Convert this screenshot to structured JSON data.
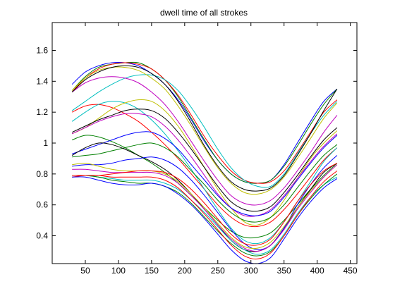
{
  "figure": {
    "background": "#ffffff",
    "axes_color": "#000000"
  },
  "chart_data": {
    "type": "line",
    "title": "dwell time of all strokes",
    "xlabel": "",
    "ylabel": "",
    "xlim": [
      0,
      460
    ],
    "ylim": [
      0.22,
      1.78
    ],
    "xticks": [
      50,
      100,
      150,
      200,
      250,
      300,
      350,
      400,
      450
    ],
    "xtick_labels": [
      "50",
      "100",
      "150",
      "200",
      "250",
      "300",
      "350",
      "400",
      "450"
    ],
    "yticks": [
      0.4,
      0.6,
      0.8,
      1.0,
      1.2,
      1.4,
      1.6
    ],
    "ytick_labels": [
      "0.4",
      "0.6",
      "0.8",
      "1",
      "1.2",
      "1.4",
      "1.6"
    ],
    "grid": false,
    "legend": "none",
    "x": [
      30,
      50,
      70,
      90,
      110,
      130,
      150,
      170,
      190,
      210,
      230,
      250,
      270,
      290,
      310,
      330,
      350,
      370,
      390,
      410,
      430
    ],
    "series": [
      {
        "color": "#0000ff",
        "values": [
          1.38,
          1.46,
          1.5,
          1.52,
          1.52,
          1.5,
          1.45,
          1.38,
          1.28,
          1.15,
          1.01,
          0.89,
          0.8,
          0.75,
          0.74,
          0.76,
          0.86,
          1.0,
          1.14,
          1.27,
          1.35
        ]
      },
      {
        "color": "#008000",
        "values": [
          1.34,
          1.43,
          1.49,
          1.51,
          1.52,
          1.52,
          1.48,
          1.41,
          1.3,
          1.16,
          1.02,
          0.89,
          0.8,
          0.75,
          0.74,
          0.76,
          0.85,
          0.98,
          1.12,
          1.25,
          1.35
        ]
      },
      {
        "color": "#ff0000",
        "values": [
          1.33,
          1.42,
          1.48,
          1.51,
          1.52,
          1.51,
          1.48,
          1.41,
          1.31,
          1.18,
          1.04,
          0.92,
          0.82,
          0.76,
          0.74,
          0.75,
          0.82,
          0.94,
          1.07,
          1.2,
          1.28
        ]
      },
      {
        "color": "#00bfbf",
        "values": [
          1.21,
          1.27,
          1.33,
          1.38,
          1.42,
          1.44,
          1.44,
          1.41,
          1.34,
          1.23,
          1.1,
          0.96,
          0.84,
          0.76,
          0.72,
          0.72,
          0.8,
          0.93,
          1.06,
          1.18,
          1.27
        ]
      },
      {
        "color": "#bf00bf",
        "values": [
          1.33,
          1.39,
          1.42,
          1.43,
          1.42,
          1.39,
          1.33,
          1.25,
          1.14,
          1.01,
          0.88,
          0.76,
          0.66,
          0.61,
          0.6,
          0.63,
          0.71,
          0.82,
          0.94,
          1.07,
          1.18
        ]
      },
      {
        "color": "#bfbf00",
        "values": [
          1.34,
          1.42,
          1.47,
          1.49,
          1.49,
          1.47,
          1.42,
          1.35,
          1.24,
          1.11,
          0.97,
          0.84,
          0.74,
          0.68,
          0.67,
          0.7,
          0.78,
          0.9,
          1.03,
          1.16,
          1.26
        ]
      },
      {
        "color": "#000000",
        "values": [
          1.33,
          1.41,
          1.46,
          1.49,
          1.5,
          1.49,
          1.45,
          1.38,
          1.27,
          1.13,
          0.98,
          0.85,
          0.75,
          0.7,
          0.69,
          0.71,
          0.79,
          0.92,
          1.06,
          1.21,
          1.35
        ]
      },
      {
        "color": "#ff0000",
        "values": [
          1.2,
          1.24,
          1.25,
          1.23,
          1.19,
          1.14,
          1.07,
          0.99,
          0.9,
          0.8,
          0.7,
          0.6,
          0.52,
          0.47,
          0.46,
          0.49,
          0.57,
          0.67,
          0.78,
          0.89,
          0.97
        ]
      },
      {
        "color": "#00bfbf",
        "values": [
          1.14,
          1.2,
          1.25,
          1.27,
          1.26,
          1.22,
          1.15,
          1.06,
          0.95,
          0.83,
          0.7,
          0.57,
          0.45,
          0.37,
          0.35,
          0.39,
          0.49,
          0.62,
          0.75,
          0.88,
          0.97
        ]
      },
      {
        "color": "#bfbf00",
        "values": [
          1.06,
          1.1,
          1.16,
          1.22,
          1.26,
          1.28,
          1.27,
          1.21,
          1.11,
          0.98,
          0.84,
          0.7,
          0.58,
          0.49,
          0.47,
          0.52,
          0.63,
          0.77,
          0.9,
          1.0,
          1.08
        ]
      },
      {
        "color": "#bf00bf",
        "values": [
          1.06,
          1.1,
          1.14,
          1.17,
          1.19,
          1.19,
          1.17,
          1.11,
          1.02,
          0.91,
          0.79,
          0.67,
          0.58,
          0.53,
          0.53,
          0.57,
          0.66,
          0.77,
          0.88,
          0.98,
          1.06
        ]
      },
      {
        "color": "#000000",
        "values": [
          1.07,
          1.11,
          1.15,
          1.18,
          1.21,
          1.22,
          1.21,
          1.16,
          1.07,
          0.96,
          0.84,
          0.72,
          0.62,
          0.57,
          0.56,
          0.59,
          0.68,
          0.79,
          0.91,
          1.02,
          1.1
        ]
      },
      {
        "color": "#008000",
        "values": [
          1.02,
          1.05,
          1.04,
          1.01,
          0.97,
          0.92,
          0.87,
          0.81,
          0.74,
          0.66,
          0.58,
          0.5,
          0.43,
          0.39,
          0.39,
          0.42,
          0.5,
          0.6,
          0.7,
          0.79,
          0.87
        ]
      },
      {
        "color": "#0000ff",
        "values": [
          0.93,
          0.96,
          0.99,
          1.02,
          1.05,
          1.07,
          1.07,
          1.03,
          0.96,
          0.86,
          0.76,
          0.66,
          0.58,
          0.54,
          0.53,
          0.56,
          0.65,
          0.76,
          0.87,
          0.97,
          1.05
        ]
      },
      {
        "color": "#008000",
        "values": [
          0.91,
          0.92,
          0.93,
          0.95,
          0.97,
          0.99,
          1.0,
          0.97,
          0.91,
          0.82,
          0.73,
          0.63,
          0.55,
          0.5,
          0.49,
          0.52,
          0.6,
          0.71,
          0.82,
          0.92,
          0.99
        ]
      },
      {
        "color": "#000000",
        "values": [
          0.92,
          0.97,
          1.0,
          0.99,
          0.96,
          0.92,
          0.88,
          0.83,
          0.76,
          0.67,
          0.57,
          0.47,
          0.37,
          0.31,
          0.3,
          0.34,
          0.45,
          0.58,
          0.7,
          0.81,
          0.87
        ]
      },
      {
        "color": "#0000ff",
        "values": [
          0.85,
          0.86,
          0.86,
          0.87,
          0.89,
          0.9,
          0.91,
          0.89,
          0.84,
          0.76,
          0.66,
          0.55,
          0.44,
          0.35,
          0.31,
          0.34,
          0.45,
          0.6,
          0.73,
          0.84,
          0.92
        ]
      },
      {
        "color": "#bfbf00",
        "values": [
          0.86,
          0.87,
          0.85,
          0.83,
          0.82,
          0.82,
          0.82,
          0.8,
          0.75,
          0.67,
          0.58,
          0.48,
          0.39,
          0.33,
          0.32,
          0.36,
          0.46,
          0.58,
          0.69,
          0.78,
          0.86
        ]
      },
      {
        "color": "#bf00bf",
        "values": [
          0.83,
          0.83,
          0.82,
          0.81,
          0.81,
          0.81,
          0.81,
          0.79,
          0.74,
          0.66,
          0.57,
          0.47,
          0.38,
          0.32,
          0.3,
          0.34,
          0.44,
          0.57,
          0.68,
          0.78,
          0.86
        ]
      },
      {
        "color": "#ff0000",
        "values": [
          0.78,
          0.79,
          0.79,
          0.8,
          0.81,
          0.82,
          0.82,
          0.81,
          0.77,
          0.7,
          0.61,
          0.51,
          0.41,
          0.35,
          0.34,
          0.38,
          0.49,
          0.62,
          0.73,
          0.82,
          0.87
        ]
      },
      {
        "color": "#00bfbf",
        "values": [
          0.79,
          0.79,
          0.78,
          0.77,
          0.76,
          0.76,
          0.76,
          0.74,
          0.7,
          0.63,
          0.55,
          0.46,
          0.37,
          0.31,
          0.28,
          0.31,
          0.41,
          0.54,
          0.65,
          0.73,
          0.78
        ]
      },
      {
        "color": "#008000",
        "values": [
          0.79,
          0.79,
          0.78,
          0.76,
          0.75,
          0.74,
          0.74,
          0.72,
          0.68,
          0.61,
          0.52,
          0.43,
          0.35,
          0.29,
          0.27,
          0.3,
          0.4,
          0.53,
          0.64,
          0.73,
          0.8
        ]
      },
      {
        "color": "#0000ff",
        "values": [
          0.78,
          0.78,
          0.76,
          0.74,
          0.73,
          0.73,
          0.74,
          0.72,
          0.67,
          0.6,
          0.51,
          0.41,
          0.31,
          0.24,
          0.22,
          0.26,
          0.38,
          0.51,
          0.62,
          0.71,
          0.77
        ]
      },
      {
        "color": "#ff0000",
        "values": [
          0.79,
          0.79,
          0.79,
          0.78,
          0.78,
          0.78,
          0.78,
          0.76,
          0.71,
          0.63,
          0.54,
          0.44,
          0.34,
          0.27,
          0.25,
          0.29,
          0.4,
          0.53,
          0.65,
          0.75,
          0.82
        ]
      }
    ]
  }
}
